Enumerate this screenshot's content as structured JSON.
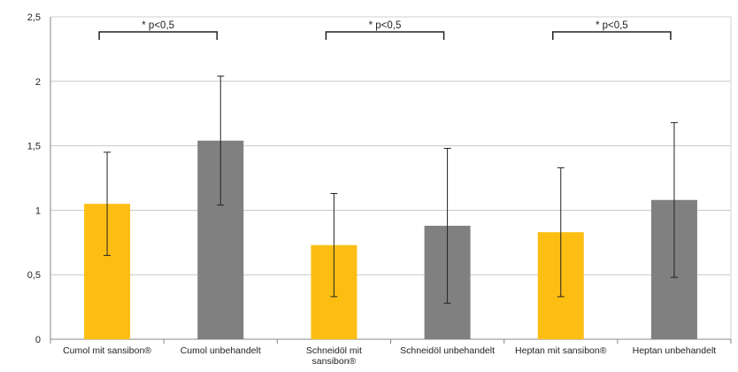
{
  "chart_data": {
    "type": "bar",
    "title": "",
    "xlabel": "",
    "ylabel": "",
    "ylim": [
      0,
      2.5
    ],
    "yticks": [
      0,
      0.5,
      1,
      1.5,
      2,
      2.5
    ],
    "ytick_labels": [
      "0",
      "0,5",
      "1",
      "1,5",
      "2",
      "2,5"
    ],
    "grid": true,
    "categories": [
      [
        "Cumol mit sansibon®"
      ],
      [
        "Cumol unbehandelt"
      ],
      [
        "Schneidöl mit",
        "sansibon®"
      ],
      [
        "Schneidöl unbehandelt"
      ],
      [
        "Heptan mit sansibon®"
      ],
      [
        "Heptan unbehandelt"
      ]
    ],
    "values": [
      1.05,
      1.54,
      0.73,
      0.88,
      0.83,
      1.08
    ],
    "error_low": [
      0.65,
      1.04,
      0.33,
      0.28,
      0.33,
      0.48
    ],
    "error_high": [
      1.45,
      2.04,
      1.13,
      1.48,
      1.33,
      1.68
    ],
    "bar_colors": [
      "#FDBE14",
      "#808080",
      "#FDBE14",
      "#808080",
      "#FDBE14",
      "#808080"
    ],
    "annotations": [
      {
        "pair": [
          0,
          1
        ],
        "text": "* p<0,5"
      },
      {
        "pair": [
          2,
          3
        ],
        "text": "* p<0,5"
      },
      {
        "pair": [
          4,
          5
        ],
        "text": "* p<0,5"
      }
    ]
  }
}
